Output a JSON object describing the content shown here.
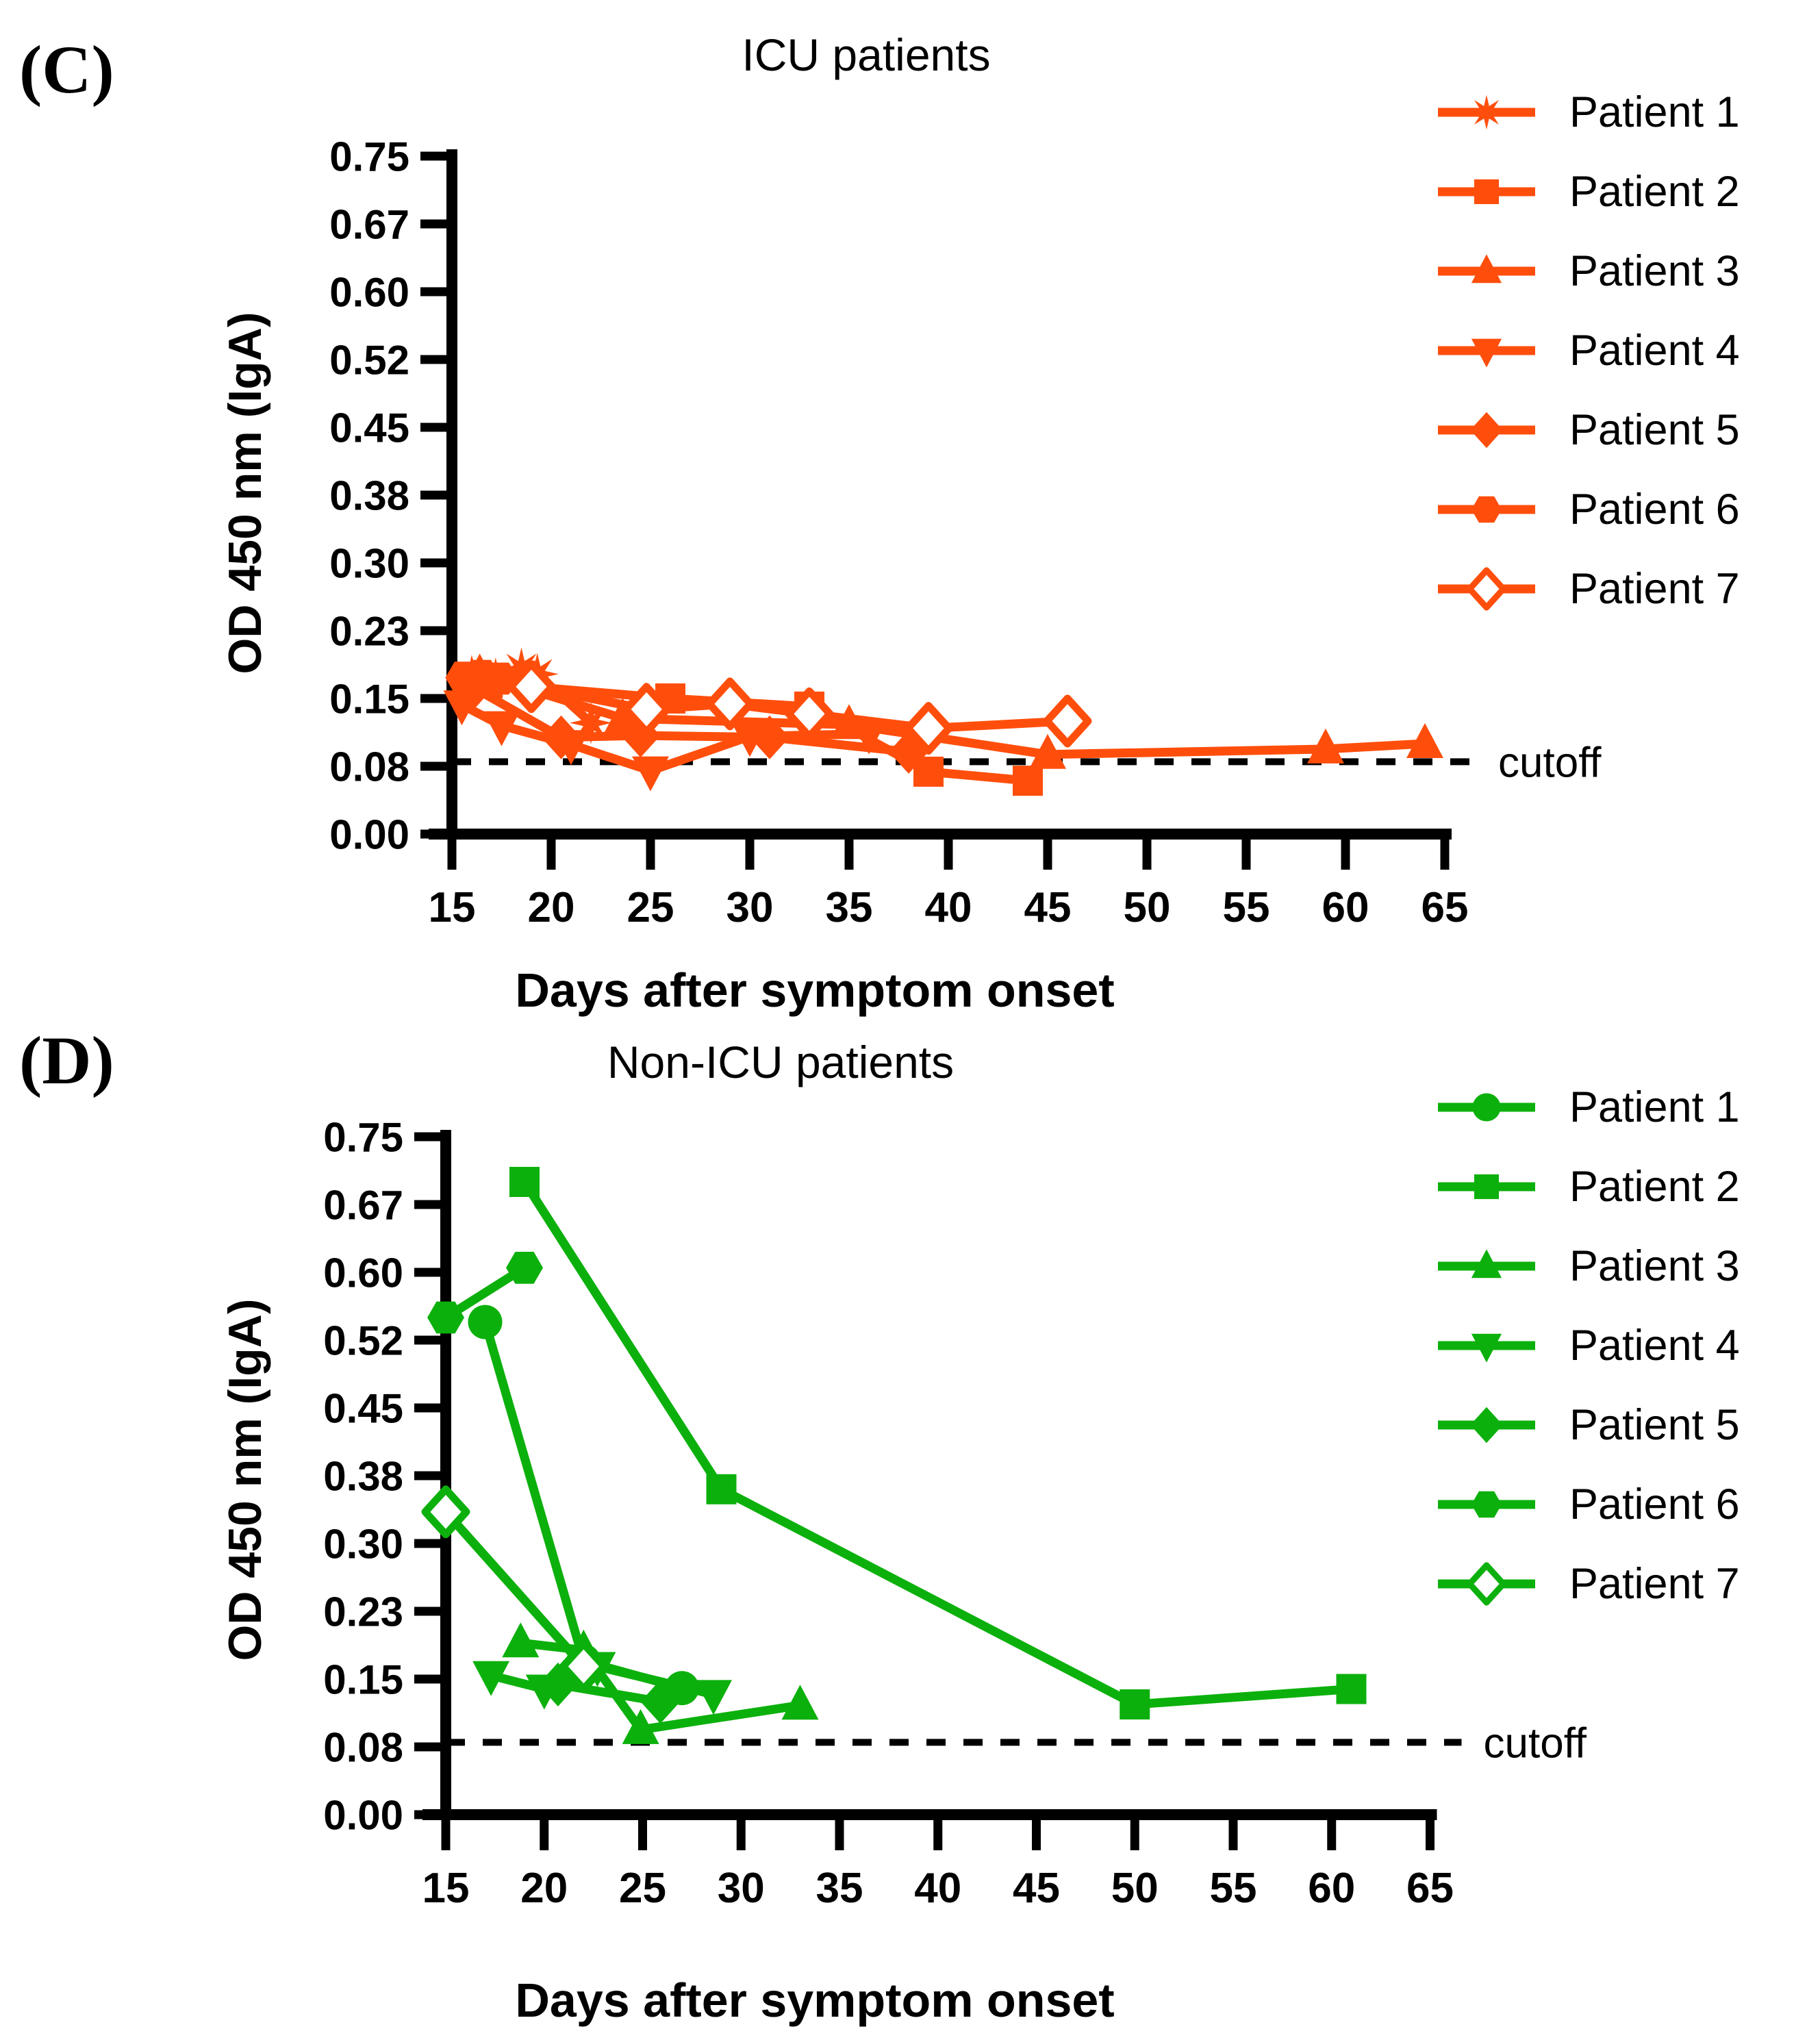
{
  "chart_data": [
    {
      "id": "C",
      "type": "line",
      "panel_label": "(C)",
      "title": "ICU patients",
      "xlabel": "Days after symptom onset",
      "ylabel": "OD 450 nm (IgA)",
      "color": "#FF4E0C",
      "xlim": [
        15,
        65
      ],
      "ylim": [
        0,
        0.75
      ],
      "x_ticks": [
        "15",
        "20",
        "25",
        "30",
        "35",
        "40",
        "45",
        "50",
        "55",
        "60",
        "65"
      ],
      "y_tick_labels": [
        "0.00",
        "0.08",
        "0.15",
        "0.23",
        "0.30",
        "0.38",
        "0.45",
        "0.52",
        "0.60",
        "0.67",
        "0.75"
      ],
      "grid": false,
      "legend_position": "right",
      "cutoff": {
        "label": "cutoff",
        "value": 0.08
      },
      "series": [
        {
          "name": "Patient 1",
          "marker": "star",
          "points": [
            [
              16,
              0.175
            ],
            [
              17.2,
              0.172
            ],
            [
              18.5,
              0.183
            ],
            [
              19.3,
              0.177
            ],
            [
              22,
              0.123
            ]
          ]
        },
        {
          "name": "Patient 2",
          "marker": "square",
          "points": [
            [
              15.8,
              0.17
            ],
            [
              16.8,
              0.167
            ],
            [
              26,
              0.15
            ],
            [
              33,
              0.141
            ],
            [
              39,
              0.069
            ],
            [
              44,
              0.059
            ]
          ]
        },
        {
          "name": "Patient 3",
          "marker": "triangle-up",
          "points": [
            [
              16.4,
              0.177
            ],
            [
              23.6,
              0.128
            ],
            [
              35,
              0.121
            ],
            [
              45,
              0.088
            ],
            [
              59,
              0.094
            ],
            [
              64,
              0.1
            ]
          ]
        },
        {
          "name": "Patient 4",
          "marker": "triangle-down",
          "points": [
            [
              15.5,
              0.143
            ],
            [
              17.5,
              0.12
            ],
            [
              21,
              0.099
            ],
            [
              25,
              0.07
            ],
            [
              30,
              0.108
            ],
            [
              36,
              0.111
            ]
          ]
        },
        {
          "name": "Patient 5",
          "marker": "diamond",
          "points": [
            [
              16.1,
              0.162
            ],
            [
              20.5,
              0.107
            ],
            [
              24.5,
              0.109
            ],
            [
              31,
              0.107
            ],
            [
              38,
              0.091
            ]
          ]
        },
        {
          "name": "Patient 6",
          "marker": "hexagon",
          "points": [
            [
              15.6,
              0.173
            ],
            [
              16.5,
              0.175
            ],
            [
              17.4,
              0.172
            ],
            [
              18.8,
              0.174
            ]
          ]
        },
        {
          "name": "Patient 7",
          "marker": "diamond-open",
          "points": [
            [
              19,
              0.163
            ],
            [
              24.8,
              0.138
            ],
            [
              29,
              0.144
            ],
            [
              33,
              0.133
            ],
            [
              39,
              0.117
            ],
            [
              46,
              0.125
            ]
          ]
        }
      ]
    },
    {
      "id": "D",
      "type": "line",
      "panel_label": "(D)",
      "title": "Non-ICU patients",
      "xlabel": "Days after symptom onset",
      "ylabel": "OD 450 nm (IgA)",
      "color": "#0CB00C",
      "xlim": [
        15,
        65
      ],
      "ylim": [
        0,
        0.75
      ],
      "x_ticks": [
        "15",
        "20",
        "25",
        "30",
        "35",
        "40",
        "45",
        "50",
        "55",
        "60",
        "65"
      ],
      "y_tick_labels": [
        "0.00",
        "0.08",
        "0.15",
        "0.23",
        "0.30",
        "0.38",
        "0.45",
        "0.52",
        "0.60",
        "0.67",
        "0.75"
      ],
      "grid": false,
      "legend_position": "right",
      "cutoff": {
        "label": "cutoff",
        "value": 0.08
      },
      "series": [
        {
          "name": "Patient 1",
          "marker": "circle",
          "points": [
            [
              17,
              0.545
            ],
            [
              22,
              0.17
            ],
            [
              27,
              0.14
            ]
          ]
        },
        {
          "name": "Patient 2",
          "marker": "square",
          "points": [
            [
              19,
              0.7
            ],
            [
              29,
              0.36
            ],
            [
              50,
              0.122
            ],
            [
              61,
              0.139
            ]
          ]
        },
        {
          "name": "Patient 3",
          "marker": "triangle-up",
          "points": [
            [
              18.8,
              0.19
            ],
            [
              22,
              0.182
            ],
            [
              24.9,
              0.094
            ],
            [
              33,
              0.121
            ]
          ]
        },
        {
          "name": "Patient 4",
          "marker": "triangle-down",
          "points": [
            [
              17.3,
              0.154
            ],
            [
              20,
              0.139
            ],
            [
              22.7,
              0.164
            ],
            [
              28.6,
              0.133
            ]
          ]
        },
        {
          "name": "Patient 5",
          "marker": "diamond",
          "points": [
            [
              20.7,
              0.144
            ],
            [
              25.9,
              0.125
            ]
          ]
        },
        {
          "name": "Patient 6",
          "marker": "hexagon",
          "points": [
            [
              15,
              0.55
            ],
            [
              19,
              0.605
            ]
          ]
        },
        {
          "name": "Patient 7",
          "marker": "diamond-open",
          "points": [
            [
              15,
              0.335
            ],
            [
              22,
              0.164
            ]
          ]
        }
      ]
    }
  ]
}
